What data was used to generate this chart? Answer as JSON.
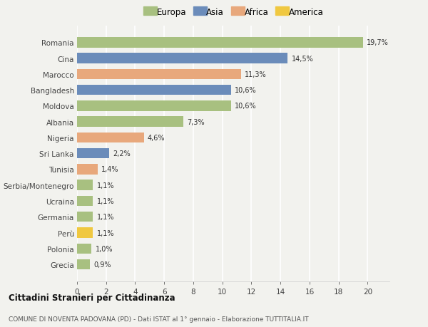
{
  "countries": [
    "Romania",
    "Cina",
    "Marocco",
    "Bangladesh",
    "Moldova",
    "Albania",
    "Nigeria",
    "Sri Lanka",
    "Tunisia",
    "Serbia/Montenegro",
    "Ucraina",
    "Germania",
    "Perù",
    "Polonia",
    "Grecia"
  ],
  "values": [
    19.7,
    14.5,
    11.3,
    10.6,
    10.6,
    7.3,
    4.6,
    2.2,
    1.4,
    1.1,
    1.1,
    1.1,
    1.1,
    1.0,
    0.9
  ],
  "labels": [
    "19,7%",
    "14,5%",
    "11,3%",
    "10,6%",
    "10,6%",
    "7,3%",
    "4,6%",
    "2,2%",
    "1,4%",
    "1,1%",
    "1,1%",
    "1,1%",
    "1,1%",
    "1,0%",
    "0,9%"
  ],
  "categories": [
    "Europa",
    "Asia",
    "Africa",
    "Asia",
    "Europa",
    "Europa",
    "Africa",
    "Asia",
    "Africa",
    "Europa",
    "Europa",
    "Europa",
    "America",
    "Europa",
    "Europa"
  ],
  "colors": {
    "Europa": "#a8c080",
    "Asia": "#6b8cba",
    "Africa": "#e8a87c",
    "America": "#f0c840"
  },
  "legend_order": [
    "Europa",
    "Asia",
    "Africa",
    "America"
  ],
  "legend_colors": [
    "#a8c080",
    "#6b8cba",
    "#e8a87c",
    "#f0c840"
  ],
  "title": "Cittadini Stranieri per Cittadinanza",
  "subtitle": "COMUNE DI NOVENTA PADOVANA (PD) - Dati ISTAT al 1° gennaio - Elaborazione TUTTITALIA.IT",
  "xlim": [
    0,
    21.5
  ],
  "xticks": [
    0,
    2,
    4,
    6,
    8,
    10,
    12,
    14,
    16,
    18,
    20
  ],
  "bg_color": "#f2f2ee",
  "grid_color": "#ffffff"
}
